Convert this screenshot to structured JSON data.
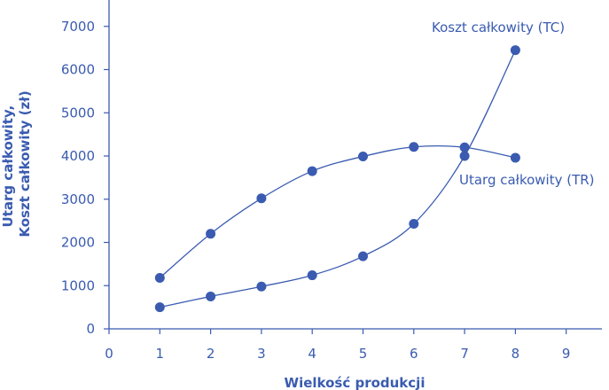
{
  "chart_data": {
    "type": "line",
    "xlabel": "Wielkość produkcji",
    "ylabel_lines": [
      "Utarg całkowity,",
      "Koszt całkowity (zł)"
    ],
    "xlim": [
      0,
      9.7
    ],
    "ylim": [
      0,
      7600
    ],
    "x_ticks": [
      0,
      1,
      2,
      3,
      4,
      5,
      6,
      7,
      8,
      9
    ],
    "y_ticks": [
      0,
      1000,
      2000,
      3000,
      4000,
      5000,
      6000,
      7000
    ],
    "grid": false,
    "color": "#3a5bb0",
    "series": [
      {
        "name": "Koszt całkowity (TC)",
        "x": [
          1,
          2,
          3,
          4,
          5,
          6,
          7,
          8
        ],
        "y": [
          500,
          750,
          980,
          1240,
          1680,
          2430,
          4000,
          6450
        ]
      },
      {
        "name": "Utarg całkowity (TR)",
        "x": [
          1,
          2,
          3,
          4,
          5,
          6,
          7,
          8
        ],
        "y": [
          1180,
          2200,
          3020,
          3650,
          3990,
          4210,
          4200,
          3960
        ]
      }
    ]
  }
}
